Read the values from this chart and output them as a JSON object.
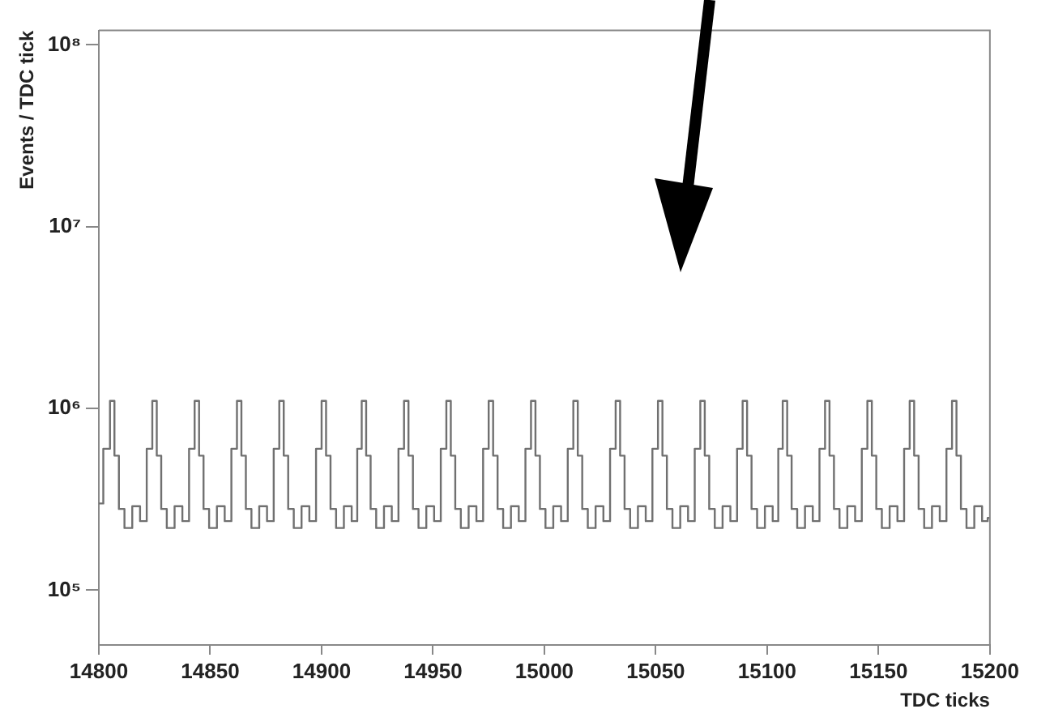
{
  "chart_data": {
    "type": "step",
    "xlabel": "TDC ticks",
    "ylabel": "Events / TDC tick",
    "log": "y",
    "grid": false,
    "legend": false,
    "marker": "none",
    "line_style": "solid",
    "xlim": [
      14800,
      15200
    ],
    "xticks": [
      14800,
      14850,
      14900,
      14950,
      15000,
      15050,
      15100,
      15150,
      15200
    ],
    "ylim": [
      50000,
      120000000
    ],
    "yticks": [
      {
        "value": 100000,
        "label": "10⁵"
      },
      {
        "value": 1000000,
        "label": "10⁶"
      },
      {
        "value": 10000000,
        "label": "10⁷"
      },
      {
        "value": 100000000,
        "label": "10⁸"
      }
    ],
    "series": [
      {
        "color": "#707070",
        "x": [
          14800,
          14804,
          14806,
          14808,
          14810,
          14813,
          14817,
          14820,
          14823,
          14825,
          14827,
          14829,
          14832,
          14836,
          14839,
          14842,
          14844,
          14846,
          14848,
          14851,
          14855,
          14858,
          14861,
          14863,
          14865,
          14867,
          14870,
          14874,
          14877,
          14880,
          14882,
          14884,
          14886,
          14889,
          14893,
          14896,
          14899,
          14901,
          14903,
          14905,
          14908,
          14912,
          14915,
          14917,
          14919,
          14921,
          14923,
          14926,
          14930,
          14933,
          14936,
          14938,
          14940,
          14942,
          14945,
          14949,
          14952,
          14955,
          14957,
          14959,
          14961,
          14964,
          14968,
          14971,
          14974,
          14976,
          14978,
          14980,
          14983,
          14987,
          14990,
          14993,
          14995,
          14997,
          14999,
          15002,
          15006,
          15009,
          15012,
          15014,
          15016,
          15018,
          15021,
          15025,
          15028,
          15031,
          15033,
          15035,
          15037,
          15040,
          15044,
          15047,
          15050,
          15052,
          15054,
          15056,
          15059,
          15063,
          15066,
          15069,
          15071,
          15073,
          15075,
          15078,
          15082,
          15085,
          15088,
          15090,
          15092,
          15094,
          15097,
          15101,
          15104,
          15106,
          15108,
          15110,
          15112,
          15115,
          15119,
          15122,
          15125,
          15127,
          15129,
          15131,
          15134,
          15138,
          15141,
          15144,
          15146,
          15148,
          15150,
          15153,
          15157,
          15160,
          15163,
          15165,
          15167,
          15169,
          15172,
          15176,
          15179,
          15182,
          15184,
          15186,
          15188,
          15191,
          15195,
          15198,
          15200
        ],
        "values": [
          300000,
          600000,
          1100000,
          550000,
          280000,
          220000,
          290000,
          240000,
          600000,
          1100000,
          550000,
          280000,
          220000,
          290000,
          240000,
          600000,
          1100000,
          550000,
          280000,
          220000,
          290000,
          240000,
          600000,
          1100000,
          550000,
          280000,
          220000,
          290000,
          240000,
          600000,
          1100000,
          550000,
          280000,
          220000,
          290000,
          240000,
          600000,
          1100000,
          550000,
          280000,
          220000,
          290000,
          240000,
          600000,
          1100000,
          550000,
          280000,
          220000,
          290000,
          240000,
          600000,
          1100000,
          550000,
          280000,
          220000,
          290000,
          240000,
          600000,
          1100000,
          550000,
          280000,
          220000,
          290000,
          240000,
          600000,
          1100000,
          550000,
          280000,
          220000,
          290000,
          240000,
          600000,
          1100000,
          550000,
          280000,
          220000,
          290000,
          240000,
          600000,
          1100000,
          550000,
          280000,
          220000,
          290000,
          240000,
          600000,
          1100000,
          550000,
          280000,
          220000,
          290000,
          240000,
          600000,
          1100000,
          550000,
          280000,
          220000,
          290000,
          240000,
          600000,
          1100000,
          550000,
          280000,
          220000,
          290000,
          240000,
          600000,
          1100000,
          550000,
          280000,
          220000,
          290000,
          240000,
          600000,
          1100000,
          550000,
          280000,
          220000,
          290000,
          240000,
          600000,
          1100000,
          550000,
          280000,
          220000,
          290000,
          240000,
          600000,
          1100000,
          550000,
          280000,
          220000,
          290000,
          240000,
          600000,
          1100000,
          550000,
          280000,
          220000,
          290000,
          240000,
          600000,
          1100000,
          550000,
          280000,
          220000,
          290000,
          240000,
          250000
        ]
      }
    ]
  }
}
